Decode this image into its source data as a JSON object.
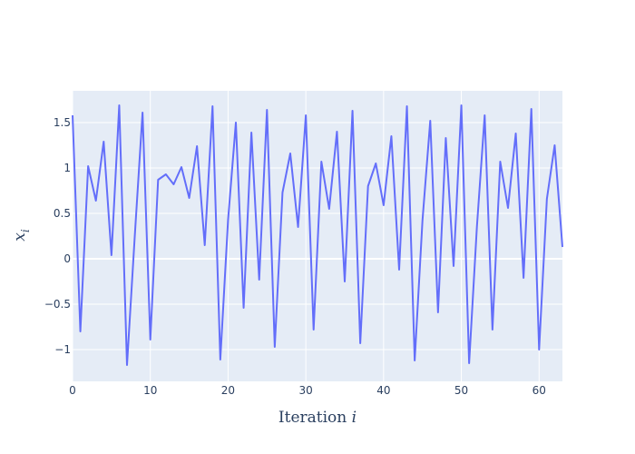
{
  "chart_data": {
    "type": "line",
    "title": "",
    "xlabel": "Iteration",
    "xlabel_var": "i",
    "ylabel_var": "x",
    "ylabel_sub": "i",
    "xlim": [
      0,
      63
    ],
    "ylim": [
      -1.35,
      1.85
    ],
    "xticks": [
      0,
      10,
      20,
      30,
      40,
      50,
      60
    ],
    "yticks": [
      -1,
      -0.5,
      0,
      0.5,
      1,
      1.5
    ],
    "xtick_labels": [
      "0",
      "10",
      "20",
      "30",
      "40",
      "50",
      "60"
    ],
    "ytick_labels": [
      "−1",
      "−0.5",
      "0",
      "0.5",
      "1",
      "1.5"
    ],
    "grid": true,
    "colors": {
      "line": "#636efa",
      "plot_bg": "#e5ecf6",
      "grid": "#ffffff"
    },
    "series": [
      {
        "x": [
          0,
          1,
          2,
          3,
          4,
          5,
          6,
          7,
          8,
          9,
          10,
          11,
          12,
          13,
          14,
          15,
          16,
          17,
          18,
          19,
          20,
          21,
          22,
          23,
          24,
          25,
          26,
          27,
          28,
          29,
          30,
          31,
          32,
          33,
          34,
          35,
          36,
          37,
          38,
          39,
          40,
          41,
          42,
          43,
          44,
          45,
          46,
          47,
          48,
          49,
          50,
          51,
          52,
          53,
          54,
          55,
          56,
          57,
          58,
          59,
          60,
          61,
          62,
          63
        ],
        "values": [
          1.58,
          -0.8,
          1.02,
          0.64,
          1.29,
          0.04,
          1.69,
          -1.17,
          0.25,
          1.61,
          -0.89,
          0.87,
          0.93,
          0.82,
          1.01,
          0.67,
          1.24,
          0.15,
          1.68,
          -1.11,
          0.43,
          1.5,
          -0.54,
          1.39,
          -0.23,
          1.64,
          -0.97,
          0.73,
          1.16,
          0.35,
          1.58,
          -0.78,
          1.07,
          0.55,
          1.4,
          -0.25,
          1.63,
          -0.93,
          0.8,
          1.05,
          0.59,
          1.35,
          -0.12,
          1.68,
          -1.12,
          0.42,
          1.52,
          -0.59,
          1.33,
          -0.08,
          1.69,
          -1.15,
          0.35,
          1.58,
          -0.78,
          1.07,
          0.56,
          1.38,
          -0.21,
          1.65,
          -1.0,
          0.66,
          1.25,
          0.13
        ]
      }
    ]
  }
}
